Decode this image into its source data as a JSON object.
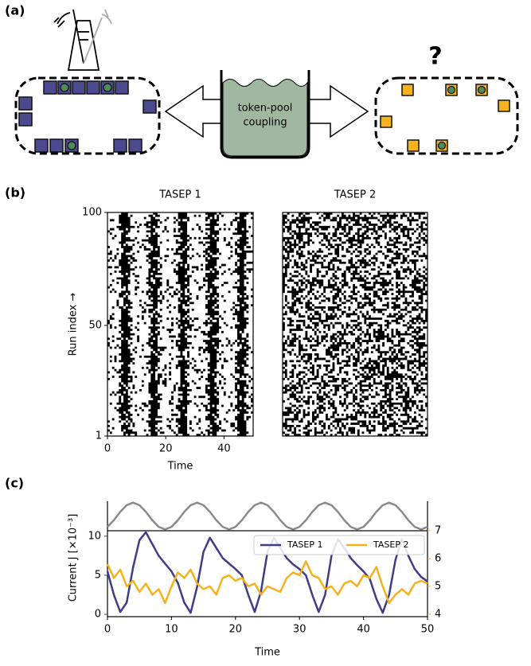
{
  "figure": {
    "panel_labels": [
      "(a)",
      "(b)",
      "(c)"
    ],
    "diagram": {
      "pool_label": [
        "token-pool",
        "coupling"
      ],
      "question": "?"
    }
  },
  "chart_data": [
    {
      "type": "raster",
      "title": "TASEP 1",
      "title_color": "#3f3d86",
      "xlim": [
        0,
        50
      ],
      "ylim": [
        1,
        100
      ],
      "xticks": [
        0,
        20,
        40
      ],
      "yticks": [
        1,
        50,
        100
      ],
      "xlabel": "Time",
      "ylabel": "Run index →"
    },
    {
      "type": "raster",
      "title": "TASEP 2",
      "title_color": "#f5b21e",
      "xlim": [
        0,
        50
      ],
      "ylim": [
        1,
        100
      ]
    },
    {
      "type": "line",
      "xlim": [
        0,
        50
      ],
      "ylim": [
        -1.1,
        1.1
      ],
      "x": [
        0,
        1,
        2,
        3,
        4,
        5,
        6,
        7,
        8,
        9,
        10,
        11,
        12,
        13,
        14,
        15,
        16,
        17,
        18,
        19,
        20,
        21,
        22,
        23,
        24,
        25,
        26,
        27,
        28,
        29,
        30,
        31,
        32,
        33,
        34,
        35,
        36,
        37,
        38,
        39,
        40,
        41,
        42,
        43,
        44,
        45,
        46,
        47,
        48,
        49,
        50
      ],
      "series": [
        {
          "color": "#8a8a8a",
          "values": [
            -0.81,
            -0.31,
            0.31,
            0.81,
            1,
            0.81,
            0.31,
            -0.31,
            -0.81,
            -1,
            -0.81,
            -0.31,
            0.31,
            0.81,
            1,
            0.81,
            0.31,
            -0.31,
            -0.81,
            -1,
            -0.81,
            -0.31,
            0.31,
            0.81,
            1,
            0.81,
            0.31,
            -0.31,
            -0.81,
            -1,
            -0.81,
            -0.31,
            0.31,
            0.81,
            1,
            0.81,
            0.31,
            -0.31,
            -0.81,
            -1,
            -0.81,
            -0.31,
            0.31,
            0.81,
            1,
            0.81,
            0.31,
            -0.31,
            -0.81,
            -1,
            -0.81
          ]
        }
      ]
    },
    {
      "type": "line",
      "xlim": [
        0,
        50
      ],
      "ylim": [
        -0.3,
        10.7
      ],
      "y2lim": [
        3.91,
        7.0
      ],
      "xticks": [
        0,
        10,
        20,
        30,
        40,
        50
      ],
      "yticks": [
        0,
        5,
        10
      ],
      "y2ticks": [
        4,
        5,
        6,
        7
      ],
      "xlabel": "Time",
      "ylabel": "Current J [×10⁻³]",
      "legend": "upper right",
      "ytick_color": "#3f3d86",
      "y2tick_color": "#f5b21e",
      "x": [
        0,
        1,
        2,
        3,
        4,
        5,
        6,
        7,
        8,
        9,
        10,
        11,
        12,
        13,
        14,
        15,
        16,
        17,
        18,
        19,
        20,
        21,
        22,
        23,
        24,
        25,
        26,
        27,
        28,
        29,
        30,
        31,
        32,
        33,
        34,
        35,
        36,
        37,
        38,
        39,
        40,
        41,
        42,
        43,
        44,
        45,
        46,
        47,
        48,
        49,
        50
      ],
      "series": [
        {
          "name": "TASEP 1",
          "color": "#3f3d86",
          "values": [
            5.5,
            2.5,
            0.3,
            1.5,
            6,
            9.5,
            10.5,
            9,
            7.5,
            6.5,
            5.5,
            4,
            1.5,
            0.2,
            3.5,
            8,
            9.8,
            8.5,
            7.2,
            6.5,
            5.8,
            5,
            2.5,
            0.3,
            3,
            8,
            9.8,
            8.5,
            7.2,
            6.4,
            5.8,
            5,
            2.5,
            0.3,
            2.5,
            7.5,
            9.6,
            8.5,
            7.2,
            6.3,
            5.5,
            4.5,
            2,
            0.2,
            2.5,
            7,
            9.6,
            7.5,
            5.8,
            4.8,
            4.2
          ]
        },
        {
          "name": "TASEP 2",
          "color": "#f5b21e",
          "axis": "y2",
          "values": [
            5.8,
            5.3,
            5.6,
            5.0,
            5.2,
            4.8,
            5.1,
            4.7,
            4.9,
            4.4,
            5.0,
            5.5,
            5.3,
            5.6,
            5.1,
            4.9,
            5.0,
            4.7,
            5.3,
            5.4,
            5.2,
            5.3,
            5.0,
            5.1,
            4.7,
            5.0,
            4.9,
            4.8,
            5.3,
            5.5,
            5.4,
            5.9,
            5.4,
            5.3,
            4.9,
            5.0,
            4.7,
            5.1,
            5.2,
            5.0,
            5.4,
            5.3,
            5.7,
            5.0,
            4.4,
            4.7,
            4.9,
            4.7,
            5.1,
            5.2,
            5.1
          ]
        }
      ]
    }
  ]
}
